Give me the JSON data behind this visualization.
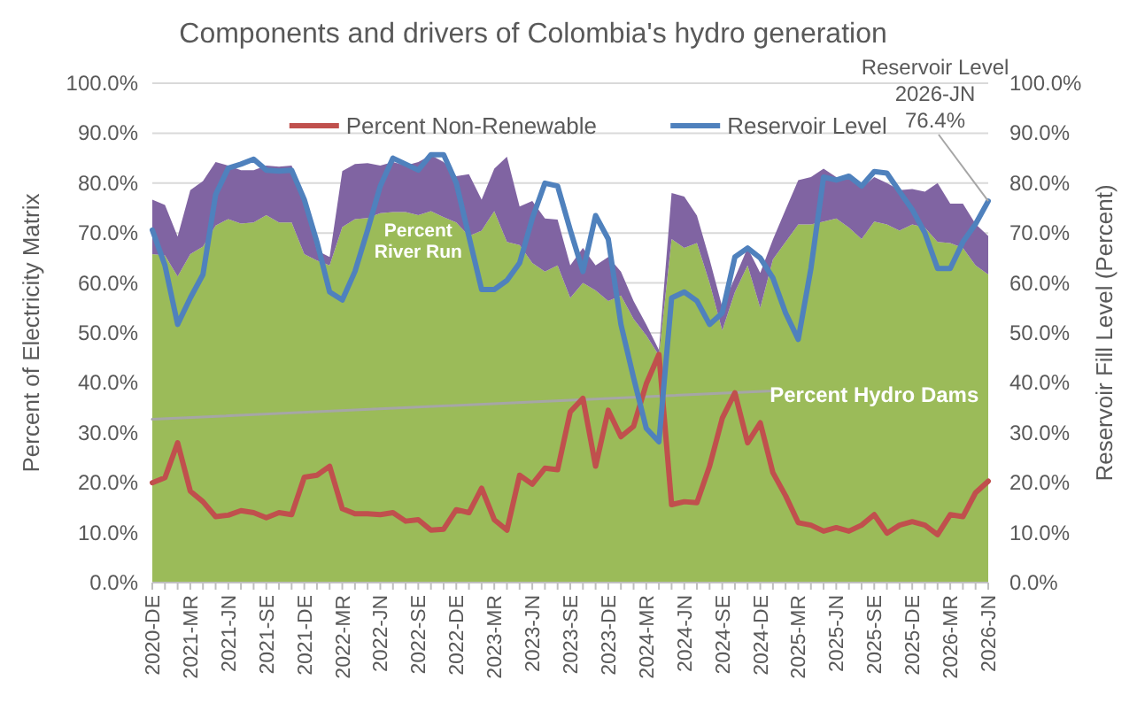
{
  "chart_data": {
    "type": "area",
    "title": "Components and drivers of Colombia's hydro generation",
    "ylabel": "Percent of Electricity Matrix",
    "y2label": "Reservoir Fill Level (Percent)",
    "categories": [
      "2020-DE",
      null,
      null,
      "2021-MR",
      null,
      null,
      "2021-JN",
      null,
      null,
      "2021-SE",
      null,
      null,
      "2021-DE",
      null,
      null,
      "2022-MR",
      null,
      null,
      "2022-JN",
      null,
      null,
      "2022-SE",
      null,
      null,
      "2022-DE",
      null,
      null,
      "2023-MR",
      null,
      null,
      "2023-JN",
      null,
      null,
      "2023-SE",
      null,
      null,
      "2023-DE",
      null,
      null,
      "2024-MR",
      null,
      null,
      "2024-JN",
      null,
      null,
      "2024-SE",
      null,
      null,
      "2024-DE",
      null,
      null,
      "2025-MR",
      null,
      null,
      "2025-JN",
      null,
      null,
      "2025-SE",
      null,
      null,
      "2025-DE",
      null,
      null,
      "2026-MR",
      null,
      null,
      "2026-JN"
    ],
    "stacked": true,
    "legend": "top",
    "grid": "y",
    "ylim": [
      0,
      100
    ],
    "yticks": [
      {
        "value": 0,
        "label": "0.0%"
      },
      {
        "value": 10,
        "label": "10.0%"
      },
      {
        "value": 20,
        "label": "20.0%"
      },
      {
        "value": 30,
        "label": "30.0%"
      },
      {
        "value": 40,
        "label": "40.0%"
      },
      {
        "value": 50,
        "label": "50.0%"
      },
      {
        "value": 60,
        "label": "60.0%"
      },
      {
        "value": 70,
        "label": "70.0%"
      },
      {
        "value": 80,
        "label": "80.0%"
      },
      {
        "value": 90,
        "label": "90.0%"
      },
      {
        "value": 100,
        "label": "100.0%"
      }
    ],
    "y2lim": [
      0,
      100
    ],
    "y2ticks": [
      {
        "value": 0,
        "label": "0.0%"
      },
      {
        "value": 10,
        "label": "10.0%"
      },
      {
        "value": 20,
        "label": "20.0%"
      },
      {
        "value": 30,
        "label": "30.0%"
      },
      {
        "value": 40,
        "label": "40.0%"
      },
      {
        "value": 50,
        "label": "50.0%"
      },
      {
        "value": 60,
        "label": "60.0%"
      },
      {
        "value": 70,
        "label": "70.0%"
      },
      {
        "value": 80,
        "label": "80.0%"
      },
      {
        "value": 90,
        "label": "90.0%"
      },
      {
        "value": 100,
        "label": "100.0%"
      }
    ],
    "series": [
      {
        "name": "Percent Hydro Dams",
        "color": "#9bbb59",
        "values": [
          65.8,
          65.5,
          61.3,
          65.8,
          67.3,
          71.5,
          72.8,
          71.9,
          72.1,
          73.6,
          72.1,
          72.1,
          65.8,
          64.5,
          63.5,
          71.2,
          72.8,
          73.0,
          74.0,
          74.2,
          74.2,
          73.6,
          74.4,
          73.2,
          72.1,
          69.4,
          70.5,
          74.4,
          68.2,
          67.6,
          64.0,
          62.3,
          63.5,
          57.0,
          60.0,
          58.5,
          56.4,
          57.5,
          52.8,
          49.5,
          45.5,
          68.8,
          67.0,
          68.0,
          60.0,
          50.5,
          58.2,
          63.5,
          55.0,
          64.7,
          68.2,
          71.7,
          71.7,
          72.3,
          72.9,
          71.1,
          68.8,
          72.3,
          71.7,
          70.5,
          71.7,
          71.1,
          68.2,
          68.0,
          67.0,
          63.5,
          61.7
        ]
      },
      {
        "name": "Percent River Run",
        "color": "#8064a2",
        "values": [
          10.9,
          10.1,
          8.0,
          12.8,
          13.1,
          12.7,
          10.7,
          10.7,
          10.5,
          9.9,
          11.2,
          11.4,
          10.9,
          2.0,
          1.7,
          11.2,
          11.0,
          11.0,
          9.5,
          10.0,
          9.3,
          10.6,
          11.2,
          11.0,
          9.3,
          12.4,
          6.2,
          8.5,
          17.1,
          7.7,
          12.4,
          10.6,
          9.2,
          6.5,
          7.0,
          5.0,
          8.8,
          4.8,
          3.6,
          2.2,
          1.1,
          9.2,
          10.3,
          5.5,
          4.7,
          4.7,
          2.9,
          3.5,
          7.0,
          4.0,
          6.5,
          8.9,
          9.5,
          10.6,
          8.3,
          10.1,
          10.2,
          8.9,
          8.3,
          8.1,
          7.1,
          7.2,
          11.8,
          7.9,
          8.9,
          8.3,
          7.7
        ]
      },
      {
        "type": "line",
        "color": "#a6a6a6",
        "values": [
          32.7,
          null,
          null,
          null,
          null,
          null,
          null,
          null,
          null,
          null,
          null,
          null,
          null,
          null,
          null,
          null,
          null,
          null,
          null,
          null,
          null,
          null,
          null,
          null,
          null,
          null,
          null,
          null,
          null,
          null,
          null,
          null,
          null,
          null,
          null,
          null,
          null,
          null,
          null,
          null,
          null,
          null,
          null,
          null,
          null,
          null,
          null,
          null,
          null,
          38.4,
          null,
          null,
          null,
          null,
          null,
          null,
          null,
          null,
          null,
          null,
          null,
          null,
          null,
          null,
          null,
          null,
          null
        ]
      },
      {
        "name": "Percent Non-Renewable",
        "type": "line",
        "color": "#c0504d",
        "values": [
          20,
          21,
          28,
          18.3,
          16.2,
          13.2,
          13.5,
          14.4,
          14,
          13,
          14,
          13.6,
          21.1,
          21.5,
          23.3,
          14.8,
          13.8,
          13.8,
          13.6,
          14,
          12.3,
          12.6,
          10.5,
          10.7,
          14.6,
          14,
          18.9,
          12.6,
          10.5,
          21.5,
          19.7,
          22.9,
          22.6,
          34.2,
          36.9,
          23.3,
          34.5,
          29.2,
          31.3,
          39.8,
          45.7,
          15.6,
          16.2,
          16,
          23.3,
          32.9,
          38,
          28,
          32,
          22,
          17.4,
          12,
          11.5,
          10.3,
          11,
          10.3,
          11.5,
          13.6,
          9.9,
          11.5,
          12.2,
          11.5,
          9.6,
          13.6,
          13.2,
          18,
          20.3
        ]
      },
      {
        "name": "Reservoir Level",
        "type": "line",
        "axis": "y2",
        "color": "#4f81bd",
        "values": [
          70.6,
          63.5,
          51.7,
          57,
          61.7,
          77.7,
          83,
          83.8,
          84.8,
          82.6,
          82.4,
          82.6,
          76.7,
          68.2,
          58.2,
          56.6,
          62.3,
          70.6,
          79.4,
          85,
          83.8,
          82.6,
          85.7,
          85.7,
          80,
          69.3,
          58.7,
          58.7,
          60.5,
          64,
          72.9,
          80,
          79.4,
          70.6,
          62.3,
          73.5,
          68.8,
          51.7,
          41,
          30.9,
          28.2,
          57,
          58.2,
          56.4,
          51.7,
          54,
          65.2,
          67,
          65,
          61,
          54,
          48.7,
          62.9,
          81.2,
          80.6,
          81.4,
          79.4,
          82.3,
          82,
          78.3,
          74.7,
          70,
          62.9,
          62.9,
          68.2,
          71.8,
          76.4
        ]
      }
    ],
    "annotations": [
      {
        "text": "Reservoir Level\n2026-JN\n76.4%",
        "x": "2026-JN",
        "y": 76.4
      }
    ]
  }
}
